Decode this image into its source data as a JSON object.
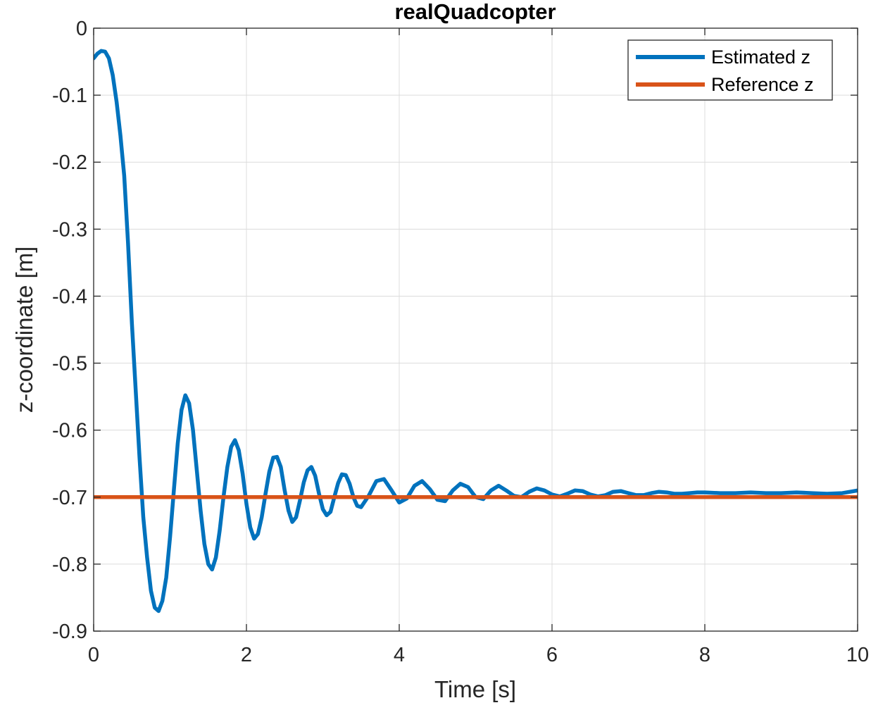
{
  "chart_data": {
    "type": "line",
    "title": "realQuadcopter",
    "xlabel": "Time [s]",
    "ylabel": "z-coordinate [m]",
    "xlim": [
      0,
      10
    ],
    "ylim": [
      -0.9,
      0
    ],
    "x_ticks": [
      0,
      2,
      4,
      6,
      8,
      10
    ],
    "x_tick_labels": [
      "0",
      "2",
      "4",
      "6",
      "8",
      "10"
    ],
    "y_ticks": [
      0,
      -0.1,
      -0.2,
      -0.3,
      -0.4,
      -0.5,
      -0.6,
      -0.7,
      -0.8,
      -0.9
    ],
    "y_tick_labels": [
      "0",
      "-0.1",
      "-0.2",
      "-0.3",
      "-0.4",
      "-0.5",
      "-0.6",
      "-0.7",
      "-0.8",
      "-0.9"
    ],
    "grid": true,
    "legend_position": "top-right",
    "series": [
      {
        "name": "Estimated z",
        "color": "#0072BD",
        "x": [
          0,
          0.05,
          0.1,
          0.15,
          0.2,
          0.25,
          0.3,
          0.35,
          0.4,
          0.45,
          0.5,
          0.55,
          0.6,
          0.65,
          0.7,
          0.75,
          0.8,
          0.85,
          0.9,
          0.95,
          1.0,
          1.05,
          1.1,
          1.15,
          1.2,
          1.25,
          1.3,
          1.35,
          1.4,
          1.45,
          1.5,
          1.55,
          1.6,
          1.65,
          1.7,
          1.75,
          1.8,
          1.85,
          1.9,
          1.95,
          2.0,
          2.05,
          2.1,
          2.15,
          2.2,
          2.25,
          2.3,
          2.35,
          2.4,
          2.45,
          2.5,
          2.55,
          2.6,
          2.65,
          2.7,
          2.75,
          2.8,
          2.85,
          2.9,
          2.95,
          3.0,
          3.05,
          3.1,
          3.15,
          3.2,
          3.25,
          3.3,
          3.35,
          3.4,
          3.45,
          3.5,
          3.6,
          3.7,
          3.8,
          3.9,
          4.0,
          4.1,
          4.2,
          4.3,
          4.4,
          4.5,
          4.6,
          4.7,
          4.8,
          4.9,
          5.0,
          5.1,
          5.2,
          5.3,
          5.4,
          5.5,
          5.6,
          5.7,
          5.8,
          5.9,
          6.0,
          6.1,
          6.2,
          6.3,
          6.4,
          6.5,
          6.6,
          6.7,
          6.8,
          6.9,
          7.0,
          7.1,
          7.2,
          7.3,
          7.4,
          7.5,
          7.6,
          7.7,
          7.8,
          7.9,
          8.0,
          8.2,
          8.4,
          8.6,
          8.8,
          9.0,
          9.2,
          9.4,
          9.6,
          9.8,
          10.0
        ],
        "values": [
          -0.045,
          -0.038,
          -0.034,
          -0.035,
          -0.045,
          -0.07,
          -0.11,
          -0.16,
          -0.22,
          -0.32,
          -0.44,
          -0.54,
          -0.64,
          -0.73,
          -0.79,
          -0.84,
          -0.865,
          -0.87,
          -0.855,
          -0.82,
          -0.76,
          -0.69,
          -0.62,
          -0.57,
          -0.548,
          -0.56,
          -0.6,
          -0.66,
          -0.72,
          -0.77,
          -0.8,
          -0.808,
          -0.79,
          -0.75,
          -0.7,
          -0.655,
          -0.625,
          -0.615,
          -0.63,
          -0.665,
          -0.71,
          -0.745,
          -0.762,
          -0.755,
          -0.73,
          -0.695,
          -0.662,
          -0.641,
          -0.64,
          -0.655,
          -0.69,
          -0.72,
          -0.737,
          -0.73,
          -0.705,
          -0.678,
          -0.66,
          -0.655,
          -0.668,
          -0.695,
          -0.718,
          -0.727,
          -0.722,
          -0.7,
          -0.679,
          -0.666,
          -0.667,
          -0.68,
          -0.7,
          -0.713,
          -0.715,
          -0.698,
          -0.676,
          -0.673,
          -0.69,
          -0.708,
          -0.702,
          -0.683,
          -0.676,
          -0.688,
          -0.704,
          -0.706,
          -0.69,
          -0.68,
          -0.685,
          -0.7,
          -0.703,
          -0.69,
          -0.683,
          -0.69,
          -0.698,
          -0.7,
          -0.692,
          -0.687,
          -0.69,
          -0.696,
          -0.699,
          -0.695,
          -0.69,
          -0.691,
          -0.696,
          -0.699,
          -0.697,
          -0.692,
          -0.691,
          -0.694,
          -0.697,
          -0.697,
          -0.694,
          -0.692,
          -0.693,
          -0.695,
          -0.695,
          -0.694,
          -0.693,
          -0.693,
          -0.694,
          -0.694,
          -0.693,
          -0.694,
          -0.694,
          -0.693,
          -0.694,
          -0.695,
          -0.694,
          -0.69
        ]
      },
      {
        "name": "Reference z",
        "color": "#D95319",
        "x": [
          0,
          10
        ],
        "values": [
          -0.7,
          -0.7
        ]
      }
    ]
  }
}
